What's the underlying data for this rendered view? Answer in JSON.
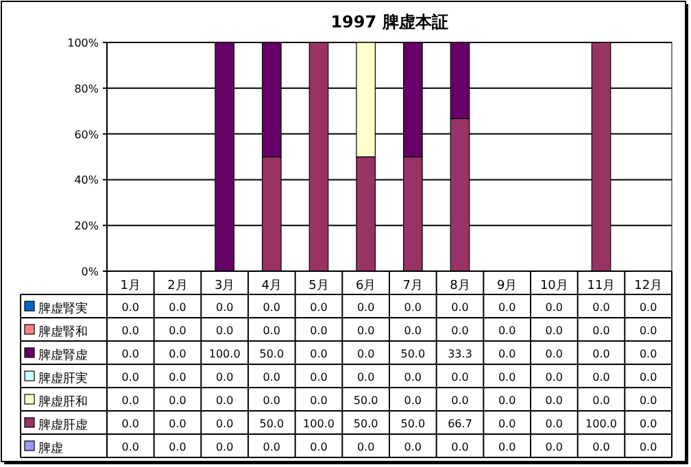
{
  "chart_data": {
    "type": "bar",
    "stacked": true,
    "title": "1997 脾虚本証",
    "categories": [
      "1月",
      "2月",
      "3月",
      "4月",
      "5月",
      "6月",
      "7月",
      "8月",
      "9月",
      "10月",
      "11月",
      "12月"
    ],
    "ylim": [
      0,
      100
    ],
    "yticks": [
      {
        "value": 0,
        "label": "0%"
      },
      {
        "value": 20,
        "label": "20%"
      },
      {
        "value": 40,
        "label": "40%"
      },
      {
        "value": 60,
        "label": "60%"
      },
      {
        "value": 80,
        "label": "80%"
      },
      {
        "value": 100,
        "label": "100%"
      }
    ],
    "grid": "y",
    "legend": "bottom",
    "series": [
      {
        "name": "脾虚",
        "color": "#9999ff",
        "values": [
          0,
          0,
          0,
          0,
          0,
          0,
          0,
          0,
          0,
          0,
          0,
          0
        ],
        "value_labels": [
          "0.0",
          "0.0",
          "0.0",
          "0.0",
          "0.0",
          "0.0",
          "0.0",
          "0.0",
          "0.0",
          "0.0",
          "0.0",
          "0.0"
        ]
      },
      {
        "name": "脾虚肝虚",
        "color": "#993366",
        "values": [
          0,
          0,
          0,
          50,
          100,
          50,
          50,
          66.7,
          0,
          0,
          100,
          0
        ],
        "value_labels": [
          "0.0",
          "0.0",
          "0.0",
          "50.0",
          "100.0",
          "50.0",
          "50.0",
          "66.7",
          "0.0",
          "0.0",
          "100.0",
          "0.0"
        ]
      },
      {
        "name": "脾虚肝和",
        "color": "#ffffcc",
        "values": [
          0,
          0,
          0,
          0,
          0,
          50,
          0,
          0,
          0,
          0,
          0,
          0
        ],
        "value_labels": [
          "0.0",
          "0.0",
          "0.0",
          "0.0",
          "0.0",
          "50.0",
          "0.0",
          "0.0",
          "0.0",
          "0.0",
          "0.0",
          "0.0"
        ]
      },
      {
        "name": "脾虚肝実",
        "color": "#ccffff",
        "values": [
          0,
          0,
          0,
          0,
          0,
          0,
          0,
          0,
          0,
          0,
          0,
          0
        ],
        "value_labels": [
          "0.0",
          "0.0",
          "0.0",
          "0.0",
          "0.0",
          "0.0",
          "0.0",
          "0.0",
          "0.0",
          "0.0",
          "0.0",
          "0.0"
        ]
      },
      {
        "name": "脾虚腎虚",
        "color": "#660066",
        "values": [
          0,
          0,
          100,
          50,
          0,
          0,
          50,
          33.3,
          0,
          0,
          0,
          0
        ],
        "value_labels": [
          "0.0",
          "0.0",
          "100.0",
          "50.0",
          "0.0",
          "0.0",
          "50.0",
          "33.3",
          "0.0",
          "0.0",
          "0.0",
          "0.0"
        ]
      },
      {
        "name": "脾虚腎和",
        "color": "#ff8080",
        "values": [
          0,
          0,
          0,
          0,
          0,
          0,
          0,
          0,
          0,
          0,
          0,
          0
        ],
        "value_labels": [
          "0.0",
          "0.0",
          "0.0",
          "0.0",
          "0.0",
          "0.0",
          "0.0",
          "0.0",
          "0.0",
          "0.0",
          "0.0",
          "0.0"
        ]
      },
      {
        "name": "脾虚腎実",
        "color": "#0066cc",
        "values": [
          0,
          0,
          0,
          0,
          0,
          0,
          0,
          0,
          0,
          0,
          0,
          0
        ],
        "value_labels": [
          "0.0",
          "0.0",
          "0.0",
          "0.0",
          "0.0",
          "0.0",
          "0.0",
          "0.0",
          "0.0",
          "0.0",
          "0.0",
          "0.0"
        ]
      }
    ]
  }
}
